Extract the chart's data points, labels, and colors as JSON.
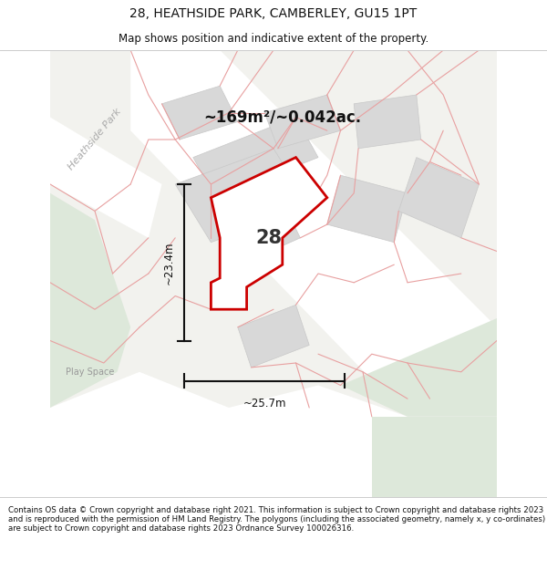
{
  "title_line1": "28, HEATHSIDE PARK, CAMBERLEY, GU15 1PT",
  "title_line2": "Map shows position and indicative extent of the property.",
  "area_text": "~169m²/~0.042ac.",
  "label_28": "28",
  "dim_vertical": "~23.4m",
  "dim_horizontal": "~25.7m",
  "label_heathside": "Heathside Park",
  "label_playspace": "Play Space",
  "footer_text": "Contains OS data © Crown copyright and database right 2021. This information is subject to Crown copyright and database rights 2023 and is reproduced with the permission of HM Land Registry. The polygons (including the associated geometry, namely x, y co-ordinates) are subject to Crown copyright and database rights 2023 Ordnance Survey 100026316.",
  "bg_map_color": "#f2f2ee",
  "road_color": "#ffffff",
  "green_color": "#dde8da",
  "gray_block_color": "#d8d8d8",
  "red_line_color": "#e8a0a0",
  "property_color": "#cc0000",
  "dim_line_color": "#111111",
  "text_color": "#888888",
  "footer_bg": "#ffffff",
  "title_bg": "#ffffff"
}
